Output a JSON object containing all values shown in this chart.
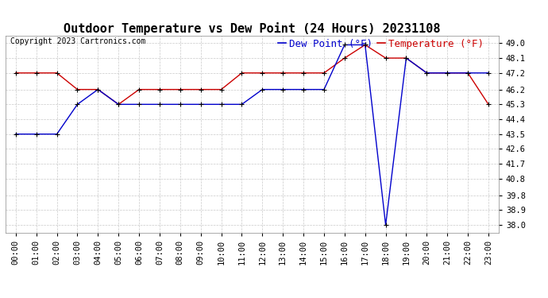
{
  "title": "Outdoor Temperature vs Dew Point (24 Hours) 20231108",
  "copyright": "Copyright 2023 Cartronics.com",
  "legend_dew": "Dew Point (°F)",
  "legend_temp": "Temperature (°F)",
  "x_labels": [
    "00:00",
    "01:00",
    "02:00",
    "03:00",
    "04:00",
    "05:00",
    "06:00",
    "07:00",
    "08:00",
    "09:00",
    "10:00",
    "11:00",
    "12:00",
    "13:00",
    "14:00",
    "15:00",
    "16:00",
    "17:00",
    "18:00",
    "19:00",
    "20:00",
    "21:00",
    "22:00",
    "23:00"
  ],
  "temperature": [
    47.2,
    47.2,
    47.2,
    46.2,
    46.2,
    45.3,
    46.2,
    46.2,
    46.2,
    46.2,
    46.2,
    47.2,
    47.2,
    47.2,
    47.2,
    47.2,
    48.1,
    48.9,
    48.1,
    48.1,
    47.2,
    47.2,
    47.2,
    45.3
  ],
  "dew_point": [
    43.5,
    43.5,
    43.5,
    45.3,
    46.2,
    45.3,
    45.3,
    45.3,
    45.3,
    45.3,
    45.3,
    45.3,
    46.2,
    46.2,
    46.2,
    46.2,
    48.9,
    48.9,
    38.0,
    48.1,
    47.2,
    47.2,
    47.2,
    47.2
  ],
  "ylim_min": 37.55,
  "ylim_max": 49.45,
  "yticks": [
    38.0,
    38.9,
    39.8,
    40.8,
    41.7,
    42.6,
    43.5,
    44.4,
    45.3,
    46.2,
    47.2,
    48.1,
    49.0
  ],
  "temp_color": "#cc0000",
  "dew_color": "#0000cc",
  "marker_color": "#000000",
  "bg_color": "#ffffff",
  "grid_color": "#bbbbbb",
  "title_fontsize": 11,
  "axis_fontsize": 7.5,
  "legend_fontsize": 9,
  "copyright_fontsize": 7
}
